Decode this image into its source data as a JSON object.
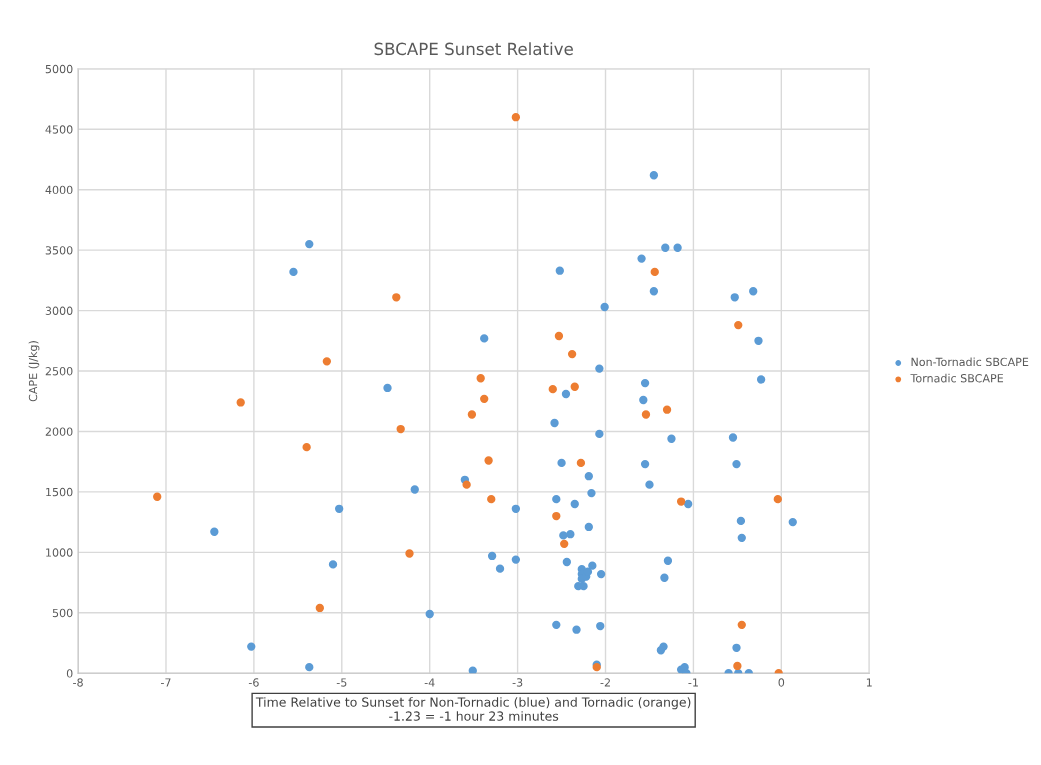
{
  "chart_data": {
    "type": "scatter",
    "title": "SBCAPE Sunset Relative",
    "ylabel": "CAPE (J/kg)",
    "xlabel": "Time Relative to Sunset for Non-Tornadic (blue) and Tornadic (orange)\n-1.23 = -1 hour 23 minutes",
    "xlim": [
      -8,
      1
    ],
    "xticks": [
      -8,
      -7,
      -6,
      -5,
      -4,
      -3,
      -2,
      -1,
      0,
      1
    ],
    "ylim": [
      0,
      5000
    ],
    "yticks": [
      0,
      500,
      1000,
      1500,
      2000,
      2500,
      3000,
      3500,
      4000,
      4500,
      5000
    ],
    "grid": true,
    "legend": "right",
    "marker": "circle",
    "series": [
      {
        "name": "Non-Tornadic SBCAPE",
        "color": "#5b9bd5",
        "x": [
          -6.45,
          -6.03,
          -5.55,
          -5.37,
          -5.37,
          -5.1,
          -5.03,
          -4.48,
          -4.17,
          -4.0,
          -3.6,
          -3.51,
          -3.38,
          -3.29,
          -3.2,
          -3.02,
          -3.02,
          -2.58,
          -2.56,
          -2.56,
          -2.52,
          -2.5,
          -2.48,
          -2.45,
          -2.44,
          -2.4,
          -2.35,
          -2.33,
          -2.31,
          -2.27,
          -2.27,
          -2.27,
          -2.25,
          -2.22,
          -2.2,
          -2.19,
          -2.19,
          -2.16,
          -2.15,
          -2.1,
          -2.07,
          -2.07,
          -2.05,
          -2.06,
          -2.01,
          -1.59,
          -1.57,
          -1.55,
          -1.55,
          -1.5,
          -1.45,
          -1.45,
          -1.37,
          -1.34,
          -1.33,
          -1.32,
          -1.29,
          -1.25,
          -1.18,
          -1.14,
          -1.1,
          -1.08,
          -1.06,
          -0.6,
          -0.55,
          -0.53,
          -0.51,
          -0.51,
          -0.49,
          -0.46,
          -0.45,
          -0.37,
          -0.32,
          -0.26,
          -0.23,
          0.13
        ],
        "values": [
          1170,
          220,
          3320,
          3550,
          50,
          900,
          1360,
          2360,
          1520,
          490,
          1600,
          20,
          2770,
          970,
          865,
          1360,
          940,
          2070,
          1440,
          400,
          3330,
          1740,
          1140,
          2310,
          920,
          1150,
          1400,
          360,
          720,
          860,
          820,
          780,
          720,
          800,
          840,
          1630,
          1210,
          1490,
          890,
          70,
          2520,
          1980,
          820,
          390,
          3030,
          3430,
          2260,
          1730,
          2400,
          1560,
          4120,
          3160,
          190,
          220,
          790,
          3520,
          930,
          1940,
          3520,
          30,
          50,
          0,
          1400,
          0,
          1950,
          3110,
          1730,
          210,
          0,
          1260,
          1120,
          0,
          3160,
          2750,
          2430,
          1250
        ]
      },
      {
        "name": "Tornadic SBCAPE",
        "color": "#ed7d31",
        "x": [
          -7.1,
          -6.15,
          -5.4,
          -5.25,
          -5.17,
          -4.38,
          -4.33,
          -4.23,
          -3.58,
          -3.52,
          -3.42,
          -3.38,
          -3.33,
          -3.3,
          -3.02,
          -2.6,
          -2.56,
          -2.53,
          -2.47,
          -2.38,
          -2.35,
          -2.28,
          -2.1,
          -1.54,
          -1.44,
          -1.3,
          -1.14,
          -0.49,
          -0.5,
          -0.45,
          -0.04,
          -0.03
        ],
        "values": [
          1460,
          2240,
          1870,
          540,
          2580,
          3110,
          2020,
          990,
          1560,
          2140,
          2440,
          2270,
          1760,
          1440,
          4600,
          2350,
          1300,
          2790,
          1070,
          2640,
          2370,
          1740,
          50,
          2140,
          3320,
          2180,
          1420,
          2880,
          60,
          400,
          1440,
          0
        ]
      }
    ]
  }
}
